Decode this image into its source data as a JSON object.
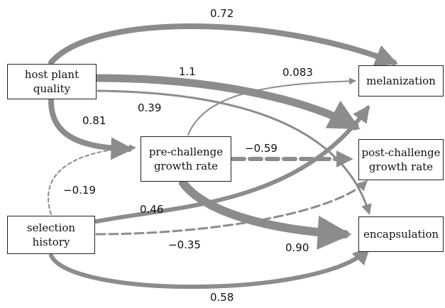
{
  "nodes": {
    "host_plant_quality": "host plant\nquality",
    "selection_history": "selection\nhistory",
    "pre_challenge_growth_rate": "pre-challenge\ngrowth rate",
    "melanization": "melanization",
    "post_challenge_growth_rate": "post-challenge\ngrowth rate",
    "encapsulation": "encapsulation"
  },
  "paths": [
    {
      "from": "host_plant_quality",
      "to": "melanization",
      "coefficient": "0.72",
      "style": "solid"
    },
    {
      "from": "host_plant_quality",
      "to": "post_challenge_growth_rate",
      "coefficient": "1.1",
      "style": "solid"
    },
    {
      "from": "host_plant_quality",
      "to": "encapsulation",
      "coefficient": "0.39",
      "style": "solid"
    },
    {
      "from": "host_plant_quality",
      "to": "pre_challenge_growth_rate",
      "coefficient": "0.81",
      "style": "solid"
    },
    {
      "from": "pre_challenge_growth_rate",
      "to": "melanization",
      "coefficient": "0.083",
      "style": "solid"
    },
    {
      "from": "pre_challenge_growth_rate",
      "to": "post_challenge_growth_rate",
      "coefficient": "−0.59",
      "style": "dashed"
    },
    {
      "from": "pre_challenge_growth_rate",
      "to": "encapsulation",
      "coefficient": "0.90",
      "style": "solid"
    },
    {
      "from": "selection_history",
      "to": "pre_challenge_growth_rate",
      "coefficient": "−0.19",
      "style": "dashed"
    },
    {
      "from": "selection_history",
      "to": "melanization",
      "coefficient": "0.46",
      "style": "solid"
    },
    {
      "from": "selection_history",
      "to": "post_challenge_growth_rate",
      "coefficient": "−0.35",
      "style": "dashed"
    },
    {
      "from": "selection_history",
      "to": "encapsulation",
      "coefficient": "0.58",
      "style": "solid"
    }
  ],
  "colors": {
    "arrow": "#8c8c8c",
    "box_border": "#222222",
    "text": "#111111"
  }
}
